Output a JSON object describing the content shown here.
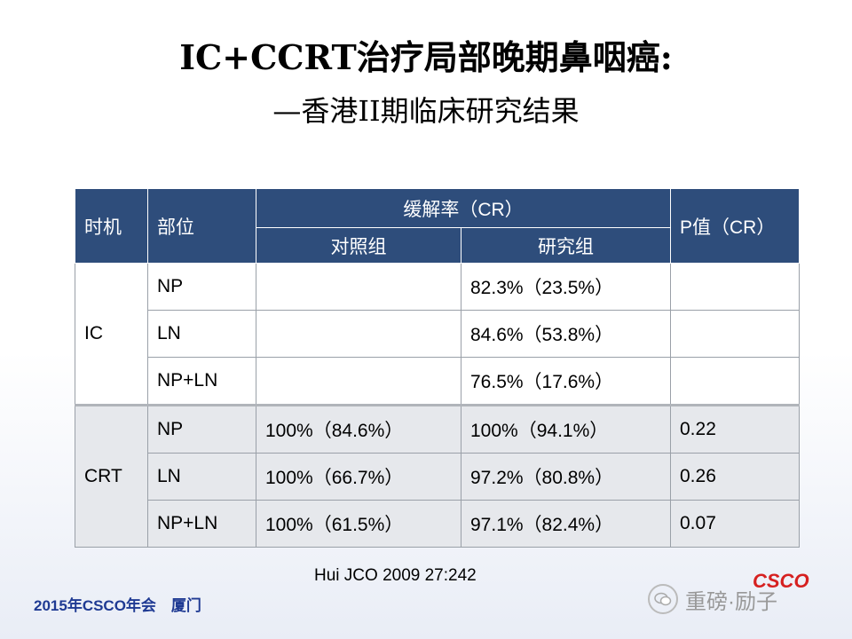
{
  "title": {
    "line1": "IC+CCRT治疗局部晚期鼻咽癌:",
    "line2": "—香港II期临床研究结果"
  },
  "table": {
    "headers": {
      "timing": "时机",
      "site": "部位",
      "remission": "缓解率（CR）",
      "control": "对照组",
      "study": "研究组",
      "pvalue": "P值（CR）"
    },
    "groups": [
      {
        "label": "IC",
        "rows": [
          {
            "site": "NP",
            "control": "",
            "study": "82.3%（23.5%）",
            "p": ""
          },
          {
            "site": "LN",
            "control": "",
            "study": "84.6%（53.8%）",
            "p": ""
          },
          {
            "site": "NP+LN",
            "control": "",
            "study": "76.5%（17.6%）",
            "p": ""
          }
        ]
      },
      {
        "label": "CRT",
        "rows": [
          {
            "site": "NP",
            "control": "100%（84.6%）",
            "study": "100%（94.1%）",
            "p": "0.22"
          },
          {
            "site": "LN",
            "control": "100%（66.7%）",
            "study": "97.2%（80.8%）",
            "p": "0.26"
          },
          {
            "site": "NP+LN",
            "control": "100%（61.5%）",
            "study": "97.1%（82.4%）",
            "p": "0.07"
          }
        ]
      }
    ]
  },
  "reference": "Hui JCO 2009 27:242",
  "footer": "2015年CSCO年会　厦门",
  "watermark": {
    "icon": "wechat-icon",
    "text": "重磅·励子",
    "logo": "CSCO"
  },
  "colors": {
    "header_bg": "#2e4d7b",
    "footer_text": "#1f3a93",
    "crt_row_bg": "#e6e8ec"
  }
}
